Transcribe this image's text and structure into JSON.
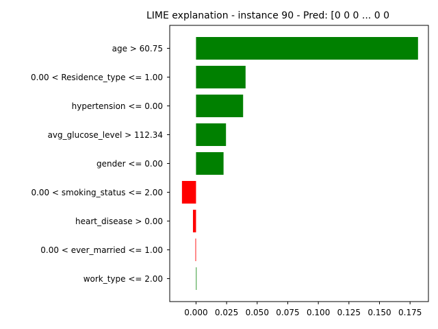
{
  "chart_data": {
    "type": "bar",
    "orientation": "horizontal",
    "title": "LIME explanation - instance 90 - Pred: [0 0 0 ... 0 0",
    "xlabel": "",
    "ylabel": "",
    "xlim": [
      -0.0215,
      0.19
    ],
    "grid": false,
    "categories": [
      "age > 60.75",
      "0.00 < Residence_type <= 1.00",
      "hypertension <= 0.00",
      "avg_glucose_level > 112.34",
      "gender <= 0.00",
      "0.00 < smoking_status <= 2.00",
      "heart_disease > 0.00",
      "0.00 < ever_married <= 1.00",
      "work_type <= 2.00"
    ],
    "values": [
      0.1815,
      0.0405,
      0.0385,
      0.0245,
      0.0225,
      -0.0115,
      -0.0025,
      -0.0005,
      0.0004
    ],
    "x_ticks": [
      "0.000",
      "0.025",
      "0.050",
      "0.075",
      "0.100",
      "0.125",
      "0.150",
      "0.175"
    ],
    "x_tick_values": [
      0,
      0.025,
      0.05,
      0.075,
      0.1,
      0.125,
      0.15,
      0.175
    ],
    "colors": {
      "positive": "#008000",
      "negative": "#ff0000"
    }
  }
}
